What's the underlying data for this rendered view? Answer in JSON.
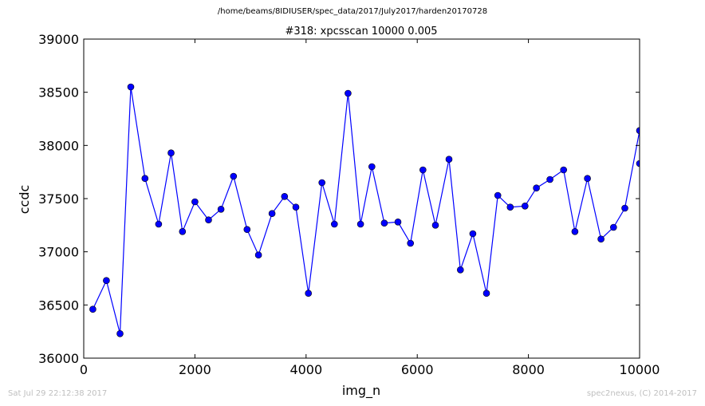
{
  "figure": {
    "path": "/home/beams/8IDIUSER/spec_data/2017/July2017/harden20170728",
    "timestamp": "Sat Jul 29 22:12:38 2017",
    "credit": "spec2nexus, (C) 2014-2017"
  },
  "chart_data": {
    "type": "line",
    "title": "#318: xpcsscan 10000 0.005",
    "xlabel": "img_n",
    "ylabel": "ccdc",
    "xlim": [
      0,
      10000
    ],
    "ylim": [
      36000,
      39000
    ],
    "xticks": [
      0,
      2000,
      4000,
      6000,
      8000,
      10000
    ],
    "yticks": [
      36000,
      36500,
      37000,
      37500,
      38000,
      38500,
      39000
    ],
    "grid": false,
    "marker": "circle",
    "color": "#0000ff",
    "series": [
      {
        "x": [
          163,
          408,
          653,
          847,
          1102,
          1347,
          1571,
          1776,
          2000,
          2245,
          2469,
          2694,
          2939,
          3143,
          3388,
          3612,
          3816,
          4041,
          4286,
          4510,
          4755,
          4980,
          5184,
          5408,
          5653,
          5878,
          6102,
          6327,
          6571,
          6776,
          7000,
          7245,
          7449,
          7673,
          7939,
          8143,
          8388,
          8633,
          8837,
          9061,
          9306,
          9531,
          9735,
          10000,
          10000
        ],
        "y": [
          36460,
          36730,
          36230,
          38550,
          37690,
          37260,
          37930,
          37190,
          37470,
          37300,
          37400,
          37710,
          37210,
          36970,
          37360,
          37520,
          37420,
          36610,
          37650,
          37260,
          38490,
          37260,
          37800,
          37270,
          37280,
          37080,
          37770,
          37250,
          37870,
          36830,
          37170,
          36610,
          37530,
          37420,
          37430,
          37600,
          37680,
          37770,
          37190,
          37690,
          37120,
          37230,
          37410,
          38140,
          37830
        ]
      }
    ]
  }
}
